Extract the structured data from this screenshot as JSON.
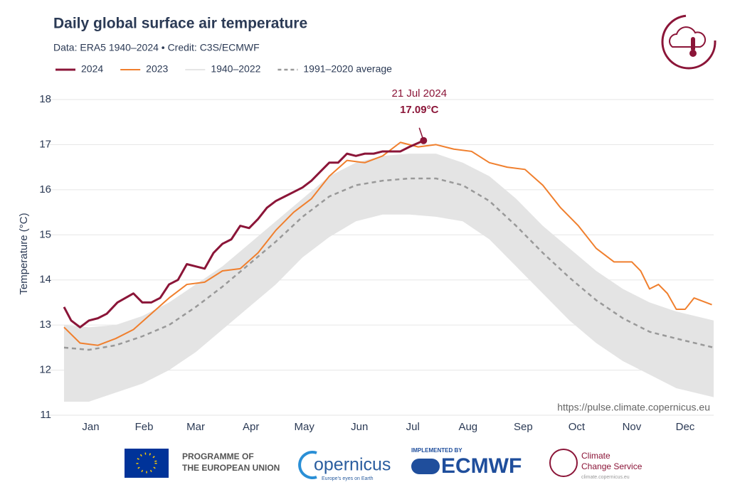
{
  "chart_data": {
    "type": "line",
    "title": "Daily global surface air temperature",
    "subtitle": "Data: ERA5 1940–2024 • Credit: C3S/ECMWF",
    "ylabel": "Temperature (°C)",
    "source": "https://pulse.climate.copernicus.eu",
    "xlim": [
      1,
      366
    ],
    "ylim": [
      11,
      18
    ],
    "yticks": [
      11,
      12,
      13,
      14,
      15,
      16,
      17,
      18
    ],
    "xticks": [
      {
        "value": 16,
        "label": "Jan"
      },
      {
        "value": 46,
        "label": "Feb"
      },
      {
        "value": 75,
        "label": "Mar"
      },
      {
        "value": 106,
        "label": "Apr"
      },
      {
        "value": 136,
        "label": "May"
      },
      {
        "value": 167,
        "label": "Jun"
      },
      {
        "value": 197,
        "label": "Jul"
      },
      {
        "value": 228,
        "label": "Aug"
      },
      {
        "value": 259,
        "label": "Sep"
      },
      {
        "value": 289,
        "label": "Oct"
      },
      {
        "value": 320,
        "label": "Nov"
      },
      {
        "value": 350,
        "label": "Dec"
      }
    ],
    "grid": true,
    "series": [
      {
        "name": "2024",
        "color": "#8b1538",
        "width": 3,
        "x": [
          1,
          5,
          10,
          15,
          20,
          25,
          31,
          40,
          45,
          50,
          55,
          60,
          65,
          70,
          75,
          80,
          85,
          90,
          95,
          100,
          105,
          110,
          115,
          120,
          125,
          130,
          135,
          140,
          145,
          150,
          155,
          160,
          165,
          170,
          175,
          180,
          185,
          190,
          195,
          203
        ],
        "values": [
          13.4,
          13.1,
          12.95,
          13.1,
          13.15,
          13.25,
          13.5,
          13.7,
          13.5,
          13.5,
          13.6,
          13.9,
          14.0,
          14.35,
          14.3,
          14.25,
          14.6,
          14.8,
          14.9,
          15.2,
          15.15,
          15.35,
          15.6,
          15.75,
          15.85,
          15.95,
          16.05,
          16.2,
          16.4,
          16.6,
          16.6,
          16.8,
          16.75,
          16.8,
          16.8,
          16.85,
          16.85,
          16.85,
          16.95,
          17.09
        ]
      },
      {
        "name": "2023",
        "color": "#f07f2d",
        "width": 2,
        "x": [
          1,
          10,
          20,
          30,
          40,
          50,
          60,
          70,
          80,
          90,
          100,
          110,
          120,
          130,
          140,
          150,
          160,
          170,
          180,
          190,
          200,
          210,
          220,
          230,
          240,
          250,
          260,
          270,
          280,
          290,
          300,
          310,
          320,
          325,
          330,
          335,
          340,
          345,
          350,
          355,
          365
        ],
        "values": [
          12.95,
          12.6,
          12.55,
          12.7,
          12.9,
          13.25,
          13.6,
          13.9,
          13.95,
          14.2,
          14.25,
          14.6,
          15.1,
          15.5,
          15.8,
          16.3,
          16.65,
          16.6,
          16.75,
          17.05,
          16.95,
          17.0,
          16.9,
          16.85,
          16.6,
          16.5,
          16.45,
          16.1,
          15.6,
          15.2,
          14.7,
          14.4,
          14.4,
          14.2,
          13.8,
          13.9,
          13.7,
          13.35,
          13.35,
          13.6,
          13.45
        ]
      },
      {
        "name": "1940–2022",
        "color": "#e4e4e4",
        "band": true,
        "x": [
          1,
          15,
          30,
          45,
          60,
          75,
          90,
          105,
          120,
          135,
          150,
          165,
          180,
          195,
          210,
          225,
          240,
          255,
          270,
          285,
          300,
          315,
          330,
          345,
          366
        ],
        "low": [
          11.3,
          11.3,
          11.5,
          11.7,
          12.0,
          12.4,
          12.9,
          13.4,
          13.9,
          14.5,
          14.95,
          15.3,
          15.45,
          15.45,
          15.4,
          15.3,
          14.9,
          14.3,
          13.7,
          13.1,
          12.6,
          12.2,
          11.9,
          11.6,
          11.4
        ],
        "high": [
          13.0,
          12.95,
          13.0,
          13.2,
          13.5,
          13.9,
          14.3,
          14.8,
          15.3,
          15.8,
          16.3,
          16.6,
          16.75,
          16.8,
          16.8,
          16.6,
          16.3,
          15.8,
          15.2,
          14.7,
          14.2,
          13.8,
          13.5,
          13.3,
          13.1
        ]
      },
      {
        "name": "1991–2020 average",
        "color": "#999999",
        "dashed": true,
        "width": 2.5,
        "x": [
          1,
          15,
          30,
          45,
          60,
          75,
          90,
          105,
          120,
          135,
          150,
          165,
          180,
          195,
          210,
          225,
          240,
          255,
          270,
          285,
          300,
          315,
          330,
          345,
          366
        ],
        "values": [
          12.5,
          12.45,
          12.55,
          12.75,
          13.0,
          13.4,
          13.85,
          14.35,
          14.85,
          15.4,
          15.85,
          16.1,
          16.2,
          16.25,
          16.25,
          16.1,
          15.75,
          15.2,
          14.6,
          14.05,
          13.55,
          13.15,
          12.85,
          12.7,
          12.5
        ]
      }
    ],
    "annotation": {
      "text": "21 Jul 2024",
      "x": 203,
      "value": 17.09,
      "label": "17.09°C",
      "color": "#8b1538"
    }
  },
  "footer": {
    "eu": "PROGRAMME OF",
    "eu2": "THE EUROPEAN UNION",
    "copernicus": "opernicus",
    "copernicus_tag": "Europe's eyes on Earth",
    "implemented": "IMPLEMENTED BY",
    "ecmwf": "ECMWF",
    "c3s": "Climate",
    "c3s2": "Change Service",
    "c3s_url": "climate.copernicus.eu"
  }
}
